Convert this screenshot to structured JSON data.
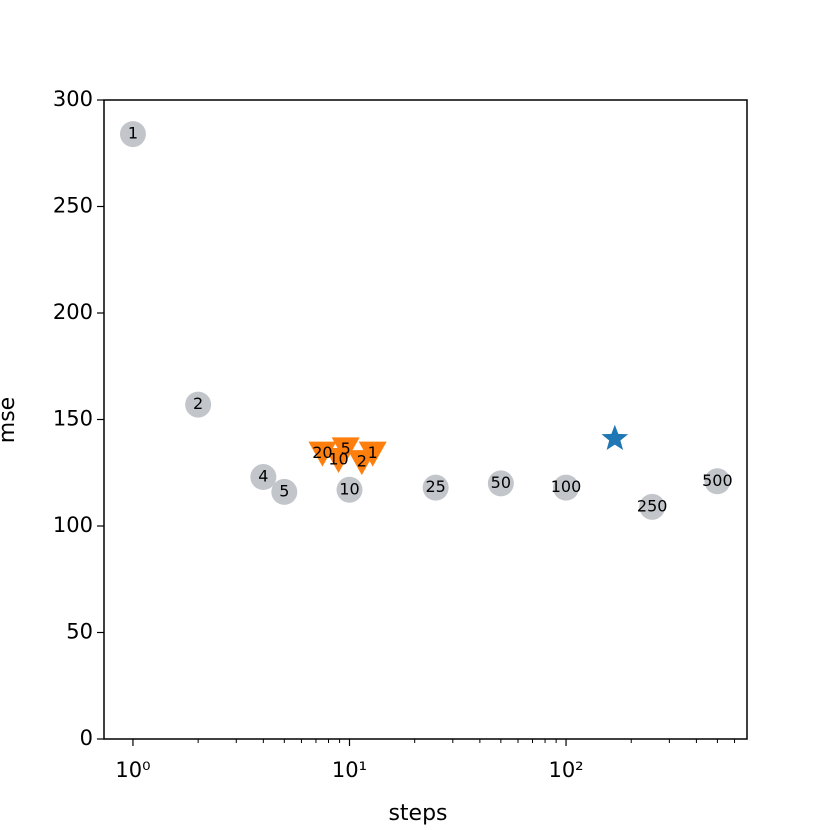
{
  "chart_data": {
    "type": "scatter",
    "x_label": "steps",
    "y_label": "mse",
    "xscale": "log",
    "xlim": [
      0.735,
      685
    ],
    "ylim": [
      0,
      300
    ],
    "xticks": [
      {
        "value": 1,
        "label": "10⁰"
      },
      {
        "value": 10,
        "label": "10¹"
      },
      {
        "value": 100,
        "label": "10²"
      }
    ],
    "xminorticks": [
      2,
      3,
      4,
      5,
      6,
      7,
      8,
      9,
      20,
      30,
      40,
      50,
      60,
      70,
      80,
      90,
      200,
      300,
      400,
      500,
      600
    ],
    "yticks": [
      0,
      50,
      100,
      150,
      200,
      250,
      300
    ],
    "series": [
      {
        "marker": "circle",
        "color": "#bfc3c8",
        "x": [
          1,
          2,
          4,
          5,
          10,
          25,
          50,
          100,
          250,
          500
        ],
        "y": [
          284,
          157,
          123,
          116,
          117,
          118,
          120,
          118,
          109,
          121
        ],
        "labels": [
          "1",
          "2",
          "4",
          "5",
          "10",
          "25",
          "50",
          "100",
          "250",
          "500"
        ]
      },
      {
        "marker": "triangle-down",
        "color": "#ff7f0e",
        "x": [
          7.5,
          9.6,
          8.9,
          12.8,
          11.4
        ],
        "y": [
          134,
          136,
          131,
          134,
          130
        ],
        "labels": [
          "20",
          "5",
          "10",
          "1",
          "2"
        ]
      },
      {
        "marker": "star",
        "color": "#1f77b4",
        "x": [
          168
        ],
        "y": [
          141
        ]
      }
    ]
  }
}
